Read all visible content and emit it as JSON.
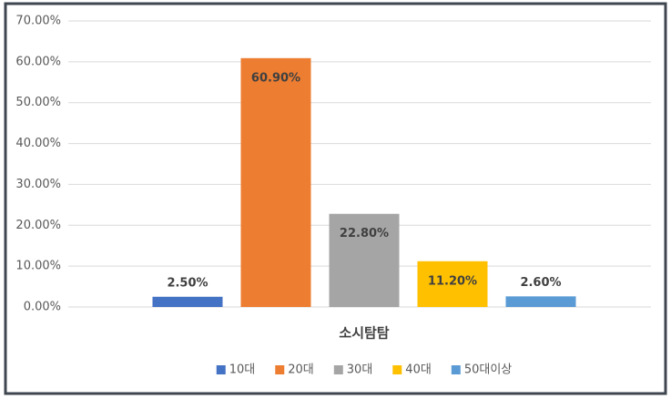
{
  "chart_data": {
    "type": "bar",
    "categories": [
      "소시탐탐"
    ],
    "series": [
      {
        "name": "10대",
        "color": "#4472c4",
        "values": [
          2.5
        ],
        "value_labels": [
          "2.50%"
        ]
      },
      {
        "name": "20대",
        "color": "#ed7d31",
        "values": [
          60.9
        ],
        "value_labels": [
          "60.90%"
        ]
      },
      {
        "name": "30대",
        "color": "#a5a5a5",
        "values": [
          22.8
        ],
        "value_labels": [
          "22.80%"
        ]
      },
      {
        "name": "40대",
        "color": "#ffc000",
        "values": [
          11.2
        ],
        "value_labels": [
          "11.20%"
        ]
      },
      {
        "name": "50대이상",
        "color": "#5b9bd5",
        "values": [
          2.6
        ],
        "value_labels": [
          "2.60%"
        ]
      }
    ],
    "ylim": [
      0,
      70
    ],
    "yticks": [
      {
        "value": 0,
        "label": "0.00%"
      },
      {
        "value": 10,
        "label": "10.00%"
      },
      {
        "value": 20,
        "label": "20.00%"
      },
      {
        "value": 30,
        "label": "30.00%"
      },
      {
        "value": 40,
        "label": "40.00%"
      },
      {
        "value": 50,
        "label": "50.00%"
      },
      {
        "value": 60,
        "label": "60.00%"
      },
      {
        "value": 70,
        "label": "70.00%"
      }
    ],
    "grid": true,
    "legend": "bottom"
  }
}
